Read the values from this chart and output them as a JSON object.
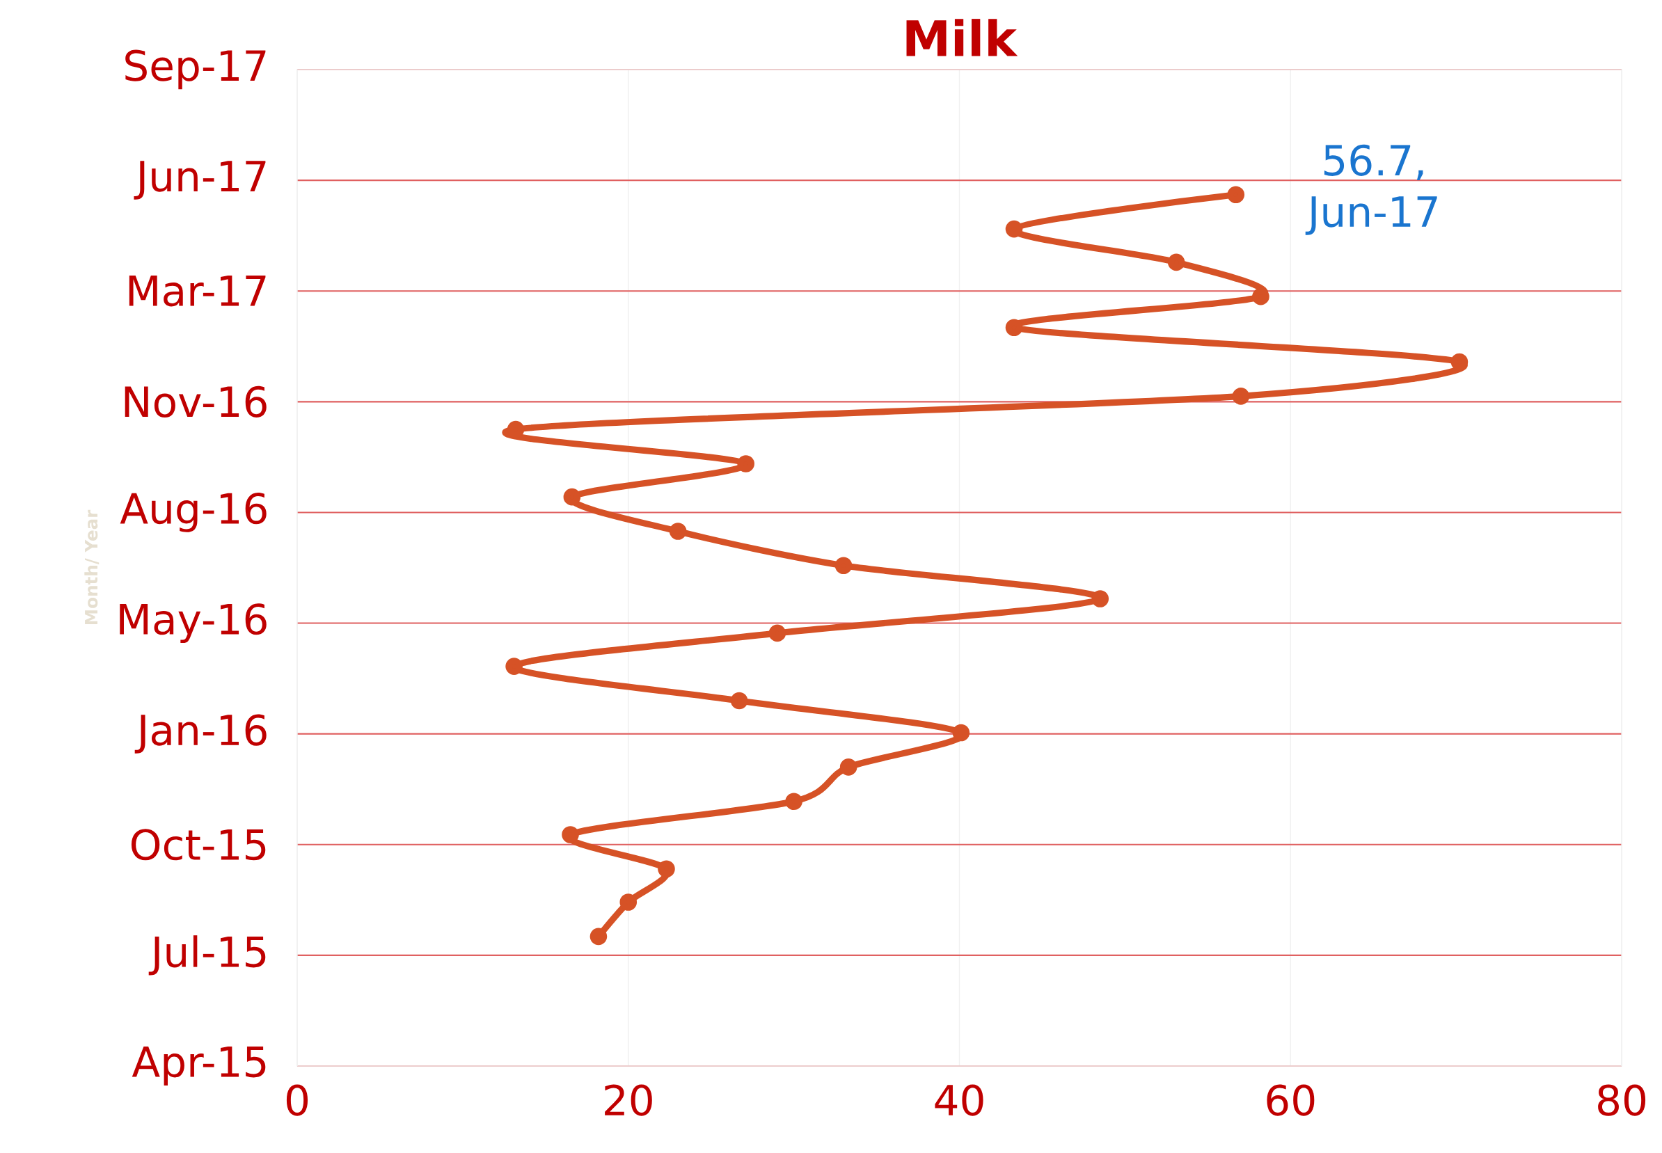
{
  "chart_data": {
    "type": "line",
    "orientation": "horizontal",
    "title": "Milk",
    "ylabel": "Month/ Year",
    "x": [
      "2015-08-01",
      "2015-09-01",
      "2015-10-01",
      "2015-11-01",
      "2015-12-01",
      "2016-01-01",
      "2016-02-01",
      "2016-03-01",
      "2016-04-01",
      "2016-05-01",
      "2016-06-01",
      "2016-07-01",
      "2016-08-01",
      "2016-09-01",
      "2016-10-01",
      "2016-11-01",
      "2016-12-01",
      "2017-01-01",
      "2017-02-01",
      "2017-03-01",
      "2017-04-01",
      "2017-05-01",
      "2017-06-01"
    ],
    "values": [
      18.2,
      20.0,
      22.3,
      16.5,
      30.0,
      33.3,
      40.1,
      26.7,
      13.1,
      29.0,
      48.5,
      33.0,
      23.0,
      16.6,
      27.1,
      13.2,
      57.0,
      70.2,
      43.3,
      58.2,
      53.1,
      43.3,
      56.7
    ],
    "color": "#d65226",
    "marker": "circle",
    "line_style": "solid",
    "grid": true,
    "xlim": [
      0,
      80
    ],
    "xticks": [
      0,
      20,
      40,
      60,
      80
    ],
    "ylim": [
      "2015-04-06",
      "2017-09-22"
    ],
    "yticks": [
      {
        "value": "2015-04-06",
        "label": "Apr-15"
      },
      {
        "value": "2015-07-15",
        "label": "Jul-15"
      },
      {
        "value": "2015-10-23",
        "label": "Oct-15"
      },
      {
        "value": "2016-01-31",
        "label": "Jan-16"
      },
      {
        "value": "2016-05-10",
        "label": "May-16"
      },
      {
        "value": "2016-08-18",
        "label": "Aug-16"
      },
      {
        "value": "2016-11-26",
        "label": "Nov-16"
      },
      {
        "value": "2017-03-06",
        "label": "Mar-17"
      },
      {
        "value": "2017-06-14",
        "label": "Jun-17"
      },
      {
        "value": "2017-09-22",
        "label": "Sep-17"
      }
    ],
    "annotations": [
      {
        "text": "56.7, Jun-17",
        "x": 56.7,
        "y": "2017-06-01"
      }
    ]
  }
}
